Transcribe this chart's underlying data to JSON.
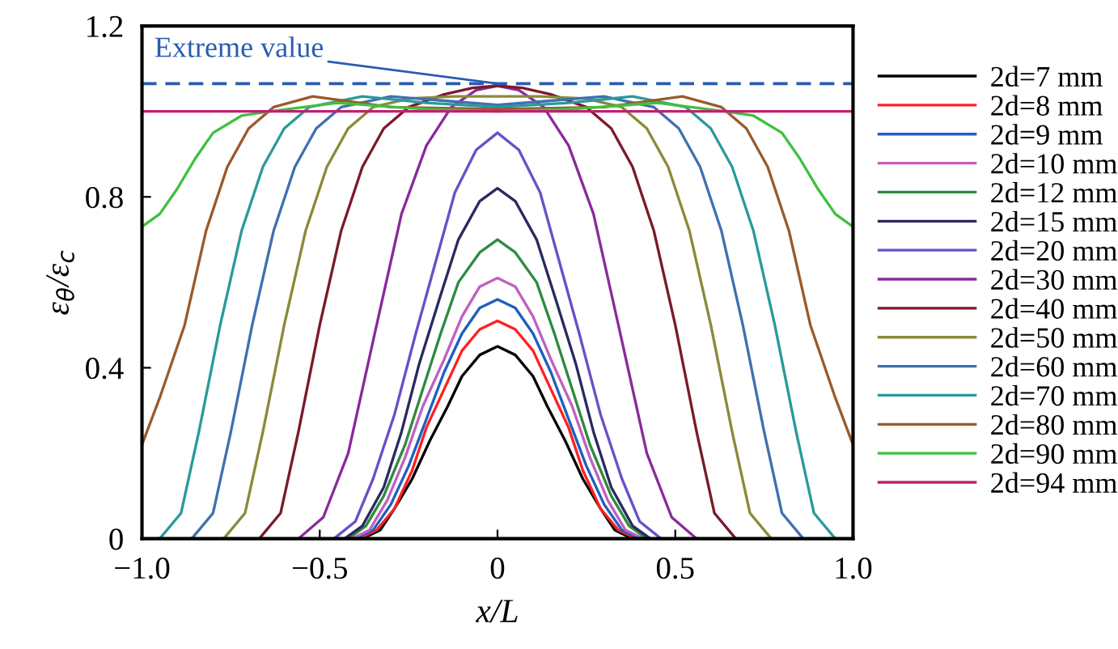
{
  "chart_data": {
    "type": "line",
    "xlabel": "x/L",
    "ylabel": "ε$_{θ}$/ε$_{c}$",
    "xlim": [
      -1,
      1
    ],
    "ylim": [
      0,
      1.2
    ],
    "xticks": [
      {
        "value": -1,
        "label": "−1.0"
      },
      {
        "value": -0.5,
        "label": "−0.5"
      },
      0,
      0.5,
      {
        "value": 1,
        "label": "1.0"
      }
    ],
    "yticks": [
      0,
      0.4,
      0.8,
      1.2
    ],
    "grid": false,
    "legend": "right",
    "marker": "none",
    "line_style": "solid",
    "ref_lines": [
      {
        "axis": "y",
        "value": 1.065,
        "color": "#2a5cb0",
        "line_style": "dashed"
      }
    ],
    "annotations": [
      {
        "text": "Extreme value",
        "x": 0,
        "y": 1.065
      }
    ],
    "series": [
      {
        "name": "2d=7 mm",
        "color": "#000000",
        "x": [
          -1,
          -0.38,
          -0.33,
          -0.29,
          -0.24,
          -0.19,
          -0.14,
          -0.1,
          -0.05,
          0,
          0.05,
          0.1,
          0.14,
          0.19,
          0.24,
          0.29,
          0.33,
          0.38,
          1
        ],
        "values": [
          0,
          0,
          0.02,
          0.07,
          0.14,
          0.23,
          0.31,
          0.38,
          0.43,
          0.45,
          0.43,
          0.38,
          0.31,
          0.23,
          0.14,
          0.07,
          0.02,
          0,
          0
        ]
      },
      {
        "name": "2d=8 mm",
        "color": "#ff2020",
        "x": [
          -1,
          -0.39,
          -0.34,
          -0.29,
          -0.24,
          -0.2,
          -0.15,
          -0.1,
          -0.05,
          0,
          0.05,
          0.1,
          0.15,
          0.2,
          0.24,
          0.29,
          0.34,
          0.39,
          1
        ],
        "values": [
          0,
          0,
          0.02,
          0.07,
          0.16,
          0.26,
          0.35,
          0.44,
          0.49,
          0.51,
          0.49,
          0.44,
          0.35,
          0.26,
          0.16,
          0.07,
          0.02,
          0,
          0
        ]
      },
      {
        "name": "2d=9 mm",
        "color": "#1f5fbf",
        "x": [
          -1,
          -0.4,
          -0.35,
          -0.3,
          -0.25,
          -0.2,
          -0.15,
          -0.1,
          -0.05,
          0,
          0.05,
          0.1,
          0.15,
          0.2,
          0.25,
          0.3,
          0.35,
          0.4,
          1
        ],
        "values": [
          0,
          0,
          0.02,
          0.08,
          0.17,
          0.28,
          0.39,
          0.48,
          0.54,
          0.56,
          0.54,
          0.48,
          0.39,
          0.28,
          0.17,
          0.08,
          0.02,
          0,
          0
        ]
      },
      {
        "name": "2d=10 mm",
        "color": "#c060c0",
        "x": [
          -1,
          -0.41,
          -0.36,
          -0.31,
          -0.26,
          -0.21,
          -0.15,
          -0.1,
          -0.05,
          0,
          0.05,
          0.1,
          0.15,
          0.21,
          0.26,
          0.31,
          0.36,
          0.41,
          1
        ],
        "values": [
          0,
          0,
          0.02,
          0.09,
          0.19,
          0.31,
          0.42,
          0.52,
          0.59,
          0.61,
          0.59,
          0.52,
          0.42,
          0.31,
          0.19,
          0.09,
          0.02,
          0,
          0
        ]
      },
      {
        "name": "2d=12 mm",
        "color": "#2e8b3e",
        "x": [
          -1,
          -0.42,
          -0.37,
          -0.32,
          -0.26,
          -0.21,
          -0.16,
          -0.11,
          -0.05,
          0,
          0.05,
          0.11,
          0.16,
          0.21,
          0.26,
          0.32,
          0.37,
          0.42,
          1
        ],
        "values": [
          0,
          0,
          0.03,
          0.1,
          0.22,
          0.35,
          0.48,
          0.6,
          0.67,
          0.7,
          0.67,
          0.6,
          0.48,
          0.35,
          0.22,
          0.1,
          0.03,
          0,
          0
        ]
      },
      {
        "name": "2d=15 mm",
        "color": "#2a2a60",
        "x": [
          -1,
          -0.43,
          -0.38,
          -0.32,
          -0.27,
          -0.22,
          -0.16,
          -0.11,
          -0.05,
          0,
          0.05,
          0.11,
          0.16,
          0.22,
          0.27,
          0.32,
          0.38,
          0.43,
          1
        ],
        "values": [
          0,
          0,
          0.03,
          0.12,
          0.25,
          0.41,
          0.57,
          0.7,
          0.79,
          0.82,
          0.79,
          0.7,
          0.57,
          0.41,
          0.25,
          0.12,
          0.03,
          0,
          0
        ]
      },
      {
        "name": "2d=20 mm",
        "color": "#6a4fc8",
        "x": [
          -1,
          -0.46,
          -0.4,
          -0.35,
          -0.29,
          -0.23,
          -0.17,
          -0.12,
          -0.06,
          0,
          0.06,
          0.12,
          0.17,
          0.23,
          0.29,
          0.35,
          0.4,
          0.46,
          1
        ],
        "values": [
          0,
          0,
          0.04,
          0.14,
          0.29,
          0.48,
          0.66,
          0.81,
          0.91,
          0.95,
          0.91,
          0.81,
          0.66,
          0.48,
          0.29,
          0.14,
          0.04,
          0,
          0
        ]
      },
      {
        "name": "2d=30 mm",
        "color": "#8a2a9a",
        "x": [
          -1,
          -0.56,
          -0.49,
          -0.42,
          -0.34,
          -0.27,
          -0.2,
          -0.13,
          -0.06,
          0,
          0.06,
          0.13,
          0.2,
          0.27,
          0.34,
          0.42,
          0.49,
          0.56,
          1
        ],
        "values": [
          0,
          0,
          0.05,
          0.2,
          0.5,
          0.76,
          0.92,
          1.01,
          1.05,
          1.06,
          1.05,
          1.01,
          0.92,
          0.76,
          0.5,
          0.2,
          0.05,
          0,
          0
        ]
      },
      {
        "name": "2d=40 mm",
        "color": "#7a1a2a",
        "x": [
          -1,
          -0.67,
          -0.61,
          -0.56,
          -0.5,
          -0.44,
          -0.38,
          -0.32,
          -0.25,
          -0.15,
          -0.07,
          0,
          0.07,
          0.15,
          0.25,
          0.32,
          0.38,
          0.44,
          0.5,
          0.56,
          0.61,
          0.67,
          1
        ],
        "values": [
          0,
          0,
          0.06,
          0.25,
          0.5,
          0.72,
          0.87,
          0.96,
          1.01,
          1.04,
          1.055,
          1.06,
          1.055,
          1.04,
          1.01,
          0.96,
          0.87,
          0.72,
          0.5,
          0.25,
          0.06,
          0,
          0
        ]
      },
      {
        "name": "2d=50 mm",
        "color": "#8a8a3a",
        "x": [
          -1,
          -0.77,
          -0.71,
          -0.66,
          -0.6,
          -0.54,
          -0.48,
          -0.42,
          -0.35,
          -0.25,
          -0.12,
          0,
          0.12,
          0.25,
          0.35,
          0.42,
          0.48,
          0.54,
          0.6,
          0.66,
          0.71,
          0.77,
          1
        ],
        "values": [
          0,
          0,
          0.06,
          0.25,
          0.5,
          0.72,
          0.87,
          0.96,
          1.01,
          1.03,
          1.035,
          1.035,
          1.035,
          1.03,
          1.01,
          0.96,
          0.87,
          0.72,
          0.5,
          0.25,
          0.06,
          0,
          0
        ]
      },
      {
        "name": "2d=60 mm",
        "color": "#4070b0",
        "x": [
          -1,
          -0.86,
          -0.8,
          -0.75,
          -0.69,
          -0.63,
          -0.57,
          -0.51,
          -0.44,
          -0.3,
          -0.15,
          0,
          0.15,
          0.3,
          0.44,
          0.51,
          0.57,
          0.63,
          0.69,
          0.75,
          0.8,
          0.86,
          1
        ],
        "values": [
          0,
          0,
          0.06,
          0.25,
          0.5,
          0.72,
          0.87,
          0.96,
          1.01,
          1.035,
          1.025,
          1.015,
          1.025,
          1.035,
          1.01,
          0.96,
          0.87,
          0.72,
          0.5,
          0.25,
          0.06,
          0,
          0
        ]
      },
      {
        "name": "2d=70 mm",
        "color": "#2a9a9a",
        "x": [
          -1,
          -0.95,
          -0.89,
          -0.84,
          -0.78,
          -0.72,
          -0.66,
          -0.6,
          -0.53,
          -0.38,
          -0.2,
          0,
          0.2,
          0.38,
          0.53,
          0.6,
          0.66,
          0.72,
          0.78,
          0.84,
          0.89,
          0.95,
          1
        ],
        "values": [
          0,
          0,
          0.06,
          0.25,
          0.5,
          0.72,
          0.87,
          0.96,
          1.01,
          1.035,
          1.02,
          1.01,
          1.02,
          1.035,
          1.01,
          0.96,
          0.87,
          0.72,
          0.5,
          0.25,
          0.06,
          0,
          0
        ]
      },
      {
        "name": "2d=80 mm",
        "color": "#9a5a2a",
        "x": [
          -1,
          -0.95,
          -0.88,
          -0.82,
          -0.76,
          -0.7,
          -0.63,
          -0.52,
          -0.3,
          0,
          0.3,
          0.52,
          0.63,
          0.7,
          0.76,
          0.82,
          0.88,
          0.95,
          1
        ],
        "values": [
          0.22,
          0.33,
          0.5,
          0.72,
          0.87,
          0.96,
          1.01,
          1.035,
          1.01,
          1.005,
          1.01,
          1.035,
          1.01,
          0.96,
          0.87,
          0.72,
          0.5,
          0.33,
          0.22
        ]
      },
      {
        "name": "2d=90 mm",
        "color": "#40c040",
        "x": [
          -1,
          -0.95,
          -0.9,
          -0.85,
          -0.8,
          -0.72,
          -0.64,
          -0.45,
          -0.2,
          0,
          0.2,
          0.45,
          0.64,
          0.72,
          0.8,
          0.85,
          0.9,
          0.95,
          1
        ],
        "values": [
          0.73,
          0.76,
          0.82,
          0.89,
          0.95,
          0.99,
          1.0,
          1.02,
          1.005,
          1.0,
          1.005,
          1.02,
          1.0,
          0.99,
          0.95,
          0.89,
          0.82,
          0.76,
          0.73
        ]
      },
      {
        "name": "2d=94 mm",
        "color": "#c02070",
        "x": [
          -1,
          1
        ],
        "values": [
          1.0,
          1.0
        ]
      }
    ]
  }
}
